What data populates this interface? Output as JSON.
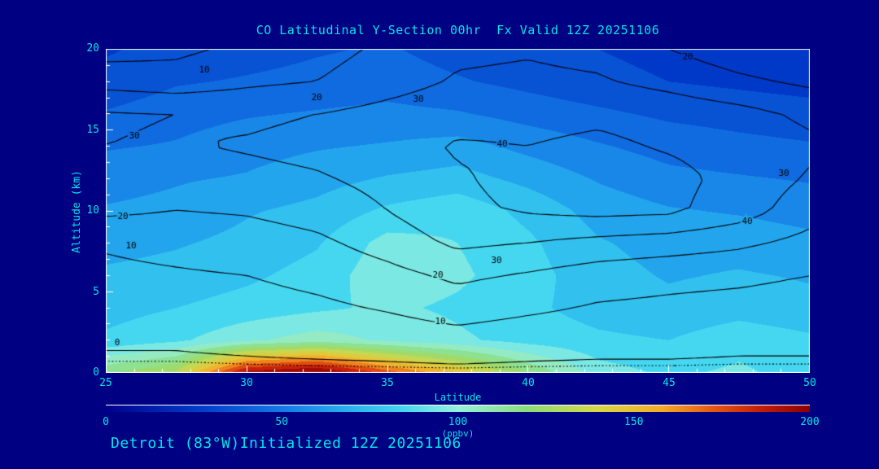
{
  "title": "CO Latitudinal Y-Section 00hr  Fx Valid 12Z 20251106",
  "footer": "Detroit (83°W)Initialized 12Z 20251106",
  "colors": {
    "background": "#000082",
    "text": "#00e6e6",
    "axis": "#ffffff",
    "contour_line": "#000000"
  },
  "chart_data": {
    "type": "heatmap",
    "title": "CO Latitudinal Y-Section 00hr  Fx Valid 12Z 20251106",
    "xlabel": "Latitude",
    "ylabel": "Altitude (km)",
    "xlim": [
      25,
      50
    ],
    "ylim": [
      0,
      20
    ],
    "x_ticks": [
      25,
      30,
      35,
      40,
      45,
      50
    ],
    "y_ticks": [
      0,
      5,
      10,
      15,
      20
    ],
    "lats": [
      25,
      27.5,
      30,
      32.5,
      35,
      37.5,
      40,
      42.5,
      45,
      47.5,
      50
    ],
    "alts": [
      0,
      2,
      4,
      6,
      8,
      10,
      12,
      14,
      16,
      18,
      20
    ],
    "co_ppbv": [
      [
        118,
        132,
        195,
        205,
        175,
        150,
        120,
        95,
        88,
        92,
        85
      ],
      [
        82,
        88,
        98,
        105,
        98,
        92,
        86,
        82,
        80,
        86,
        82
      ],
      [
        76,
        80,
        84,
        88,
        92,
        88,
        82,
        76,
        73,
        76,
        73
      ],
      [
        72,
        74,
        78,
        84,
        97,
        92,
        84,
        74,
        69,
        71,
        69
      ],
      [
        66,
        69,
        73,
        79,
        94,
        90,
        82,
        71,
        66,
        66,
        63
      ],
      [
        61,
        63,
        69,
        73,
        82,
        87,
        77,
        66,
        61,
        59,
        56
      ],
      [
        56,
        59,
        61,
        66,
        71,
        74,
        67,
        59,
        53,
        51,
        49
      ],
      [
        49,
        51,
        56,
        59,
        61,
        64,
        57,
        51,
        46,
        43,
        41
      ],
      [
        41,
        46,
        49,
        51,
        53,
        51,
        46,
        42,
        38,
        36,
        34
      ],
      [
        33,
        39,
        41,
        43,
        45,
        41,
        37,
        33,
        30,
        28,
        26
      ],
      [
        29,
        33,
        36,
        39,
        41,
        36,
        33,
        30,
        27,
        25,
        24
      ]
    ],
    "contour_overlay": {
      "levels": [
        0,
        10,
        20,
        30,
        40
      ],
      "dotted_levels": [
        -1
      ],
      "values": [
        [
          -2,
          -2,
          -2,
          -2,
          -2,
          -2,
          -2,
          -2,
          -2,
          -2,
          -2
        ],
        [
          1,
          1,
          2,
          3,
          4,
          6,
          4,
          3,
          3,
          2,
          2
        ],
        [
          5,
          5,
          6,
          8,
          11,
          15,
          12,
          9,
          8,
          7,
          6
        ],
        [
          8,
          9,
          10,
          13,
          17,
          22,
          19,
          15,
          13,
          12,
          10
        ],
        [
          11,
          13,
          15,
          18,
          24,
          32,
          30,
          27,
          25,
          22,
          17
        ],
        [
          22,
          20,
          21,
          24,
          30,
          38,
          41,
          43,
          42,
          35,
          24
        ],
        [
          27,
          26,
          27,
          29,
          33,
          39,
          43,
          45,
          43,
          37,
          29
        ],
        [
          30,
          29,
          31,
          33,
          36,
          41,
          40,
          42,
          39,
          36,
          32
        ],
        [
          31,
          30,
          28,
          30,
          33,
          36,
          37,
          38,
          36,
          33,
          28
        ],
        [
          16,
          14,
          18,
          20,
          26,
          31,
          32,
          31,
          27,
          22,
          18
        ],
        [
          6,
          8,
          12,
          16,
          22,
          28,
          29,
          27,
          20,
          14,
          10
        ]
      ],
      "labels": [
        {
          "lat": 28.5,
          "alt": 18.7,
          "text": "10"
        },
        {
          "lat": 32.5,
          "alt": 17.0,
          "text": "20"
        },
        {
          "lat": 36.1,
          "alt": 16.9,
          "text": "30"
        },
        {
          "lat": 45.7,
          "alt": 19.5,
          "text": "20"
        },
        {
          "lat": 26.0,
          "alt": 14.6,
          "text": "30"
        },
        {
          "lat": 39.1,
          "alt": 14.1,
          "text": "40"
        },
        {
          "lat": 49.1,
          "alt": 12.3,
          "text": "30"
        },
        {
          "lat": 25.6,
          "alt": 9.6,
          "text": "20"
        },
        {
          "lat": 47.8,
          "alt": 9.3,
          "text": "40"
        },
        {
          "lat": 25.9,
          "alt": 7.8,
          "text": "10"
        },
        {
          "lat": 38.9,
          "alt": 6.9,
          "text": "30"
        },
        {
          "lat": 36.8,
          "alt": 6.0,
          "text": "20"
        },
        {
          "lat": 36.9,
          "alt": 3.1,
          "text": "10"
        },
        {
          "lat": 25.4,
          "alt": 1.8,
          "text": "0"
        }
      ]
    },
    "colorbar": {
      "min": 0,
      "max": 200,
      "ticks": [
        0,
        50,
        100,
        150,
        200
      ],
      "label": "(ppbv)",
      "stops": [
        {
          "v": 0,
          "c": "#00008c"
        },
        {
          "v": 25,
          "c": "#0038c8"
        },
        {
          "v": 50,
          "c": "#1478e6"
        },
        {
          "v": 70,
          "c": "#28b4ef"
        },
        {
          "v": 85,
          "c": "#46d7f0"
        },
        {
          "v": 100,
          "c": "#96f0dc"
        },
        {
          "v": 120,
          "c": "#8cdc78"
        },
        {
          "v": 140,
          "c": "#d7d746"
        },
        {
          "v": 158,
          "c": "#f5aa28"
        },
        {
          "v": 172,
          "c": "#e65a14"
        },
        {
          "v": 186,
          "c": "#c31e08"
        },
        {
          "v": 200,
          "c": "#8c0000"
        }
      ]
    }
  }
}
